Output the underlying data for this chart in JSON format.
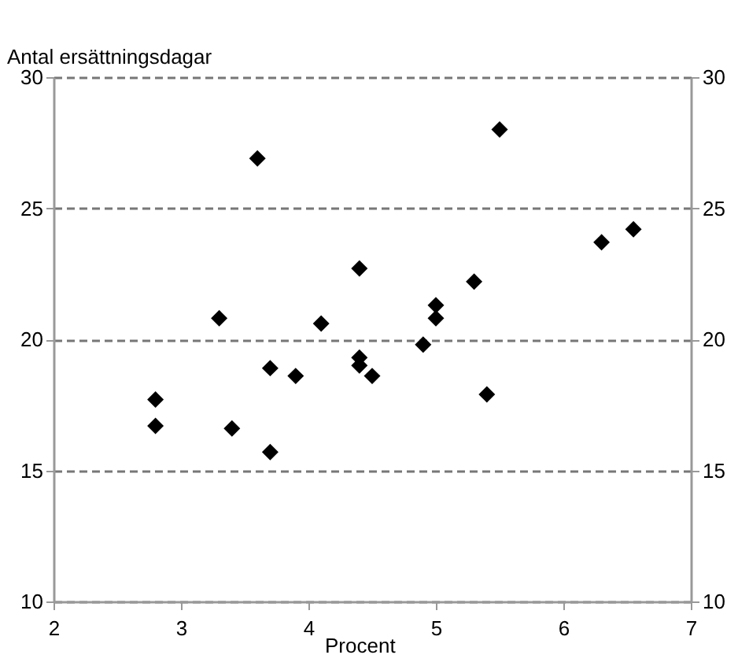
{
  "chart_data": {
    "type": "scatter",
    "xlabel": "Procent",
    "ylabel": "Antal ersättningsdagar",
    "x": [
      2.8,
      2.8,
      3.3,
      3.4,
      3.6,
      3.7,
      3.7,
      3.9,
      4.1,
      4.4,
      4.4,
      4.4,
      4.5,
      4.9,
      5.0,
      5.0,
      5.3,
      5.4,
      5.5,
      6.3,
      6.55
    ],
    "series": [
      {
        "color": "#000000",
        "values": [
          17.7,
          16.7,
          20.8,
          16.6,
          26.9,
          18.9,
          15.7,
          18.6,
          20.6,
          22.7,
          19.3,
          19.0,
          18.6,
          19.8,
          21.3,
          20.8,
          22.2,
          17.9,
          28.0,
          23.7,
          24.2
        ]
      }
    ],
    "xlim": [
      2,
      7
    ],
    "xticks": [
      2,
      3,
      4,
      5,
      6,
      7
    ],
    "ylim": [
      10,
      30
    ],
    "yticks": [
      10,
      15,
      20,
      25,
      30
    ],
    "y2lim": [
      10,
      30
    ],
    "y2ticks": [
      10,
      15,
      20,
      25,
      30
    ],
    "grid": "y",
    "marker": "diamond",
    "line_style": "dashed"
  }
}
